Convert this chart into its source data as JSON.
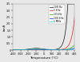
{
  "title": "",
  "xlabel": "Temperature (°C)",
  "ylabel": "tanδ",
  "xlim": [
    -400,
    400
  ],
  "ylim": [
    0,
    3.5
  ],
  "legend_entries": [
    "100 Hz",
    "1 kHz",
    "10 kHz",
    "100 kHz",
    "1 MHz"
  ],
  "legend_colors": [
    "#111111",
    "#dd2222",
    "#22aa22",
    "#2222dd",
    "#22cccc"
  ],
  "background_color": "#e8e8e8",
  "yticks": [
    0,
    0.5,
    1.0,
    1.5,
    2.0,
    2.5,
    3.0,
    3.5
  ],
  "xticks": [
    -400,
    -300,
    -200,
    -100,
    0,
    100,
    200,
    300,
    400
  ]
}
